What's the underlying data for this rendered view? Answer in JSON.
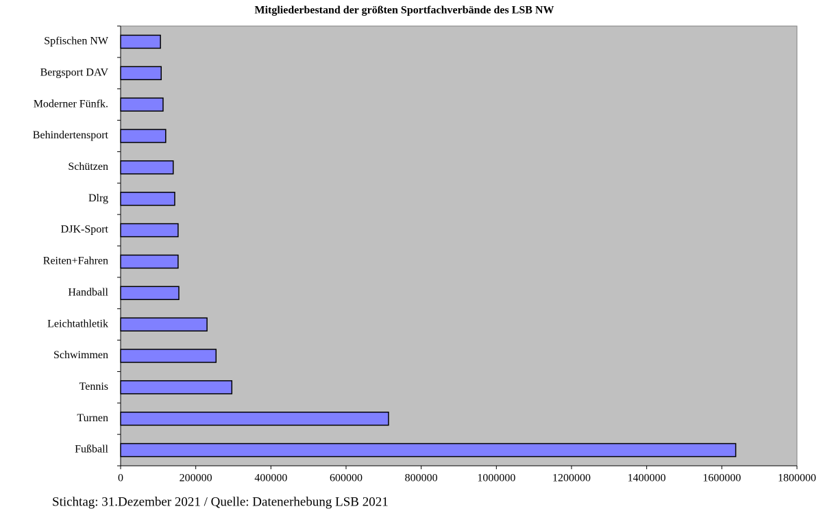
{
  "chart_data": {
    "type": "barh",
    "title": "Mitgliederbestand der größten Sportfachverbände des LSB NW",
    "note": "Stichtag: 31.Dezember 2021 / Quelle: Datenerhebung LSB 2021",
    "categories": [
      "Fußball",
      "Turnen",
      "Tennis",
      "Schwimmen",
      "Leichtathletik",
      "Handball",
      "Reiten+Fahren",
      "DJK-Sport",
      "Dlrg",
      "Schützen",
      "Behindertensport",
      "Moderner Fünfk.",
      "Bergsport DAV",
      "Spfischen NW"
    ],
    "values": [
      1637000,
      713000,
      296000,
      254000,
      230000,
      155000,
      153000,
      153000,
      144000,
      140000,
      120000,
      113000,
      108000,
      106000
    ],
    "color": "#8080ff",
    "plot_background": "#c0c0c0",
    "xlim": [
      0,
      1800000
    ],
    "xticks": [
      0,
      200000,
      400000,
      600000,
      800000,
      1000000,
      1200000,
      1400000,
      1600000,
      1800000
    ],
    "grid": false
  }
}
